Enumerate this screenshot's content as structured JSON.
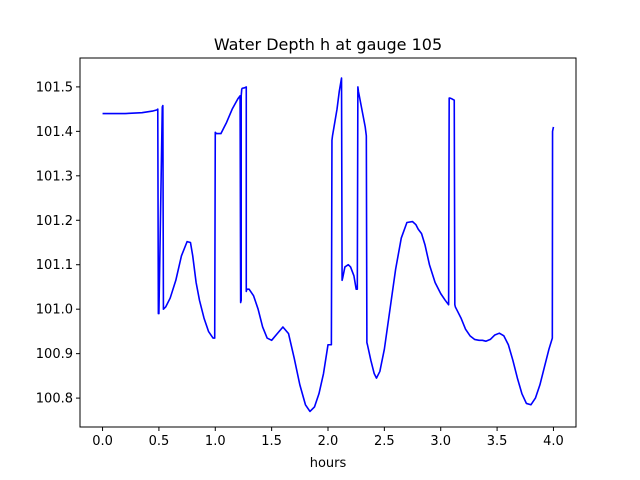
{
  "chart_data": {
    "type": "line",
    "title": "Water Depth h at gauge 105",
    "xlabel": "hours",
    "ylabel": "",
    "xlim": [
      -0.2,
      4.2
    ],
    "ylim": [
      100.735,
      101.565
    ],
    "xticks": [
      0.0,
      0.5,
      1.0,
      1.5,
      2.0,
      2.5,
      3.0,
      3.5,
      4.0
    ],
    "xtick_labels": [
      "0.0",
      "0.5",
      "1.0",
      "1.5",
      "2.0",
      "2.5",
      "3.0",
      "3.5",
      "4.0"
    ],
    "yticks": [
      100.8,
      100.9,
      101.0,
      101.1,
      101.2,
      101.3,
      101.4,
      101.5
    ],
    "ytick_labels": [
      "100.8",
      "100.9",
      "101.0",
      "101.1",
      "101.2",
      "101.3",
      "101.4",
      "101.5"
    ],
    "grid": false,
    "line_color": "#0000ff",
    "series": [
      {
        "x": [
          0.0,
          0.2,
          0.35,
          0.45,
          0.48,
          0.485,
          0.49,
          0.495,
          0.5,
          0.53,
          0.535,
          0.54,
          0.56,
          0.6,
          0.65,
          0.7,
          0.75,
          0.78,
          0.8,
          0.83,
          0.86,
          0.9,
          0.94,
          0.98,
          0.995,
          1.0,
          1.01,
          1.05,
          1.1,
          1.15,
          1.2,
          1.22,
          1.225,
          1.23,
          1.23,
          1.235,
          1.24,
          1.26,
          1.275,
          1.275,
          1.28,
          1.3,
          1.34,
          1.38,
          1.42,
          1.46,
          1.5,
          1.55,
          1.6,
          1.65,
          1.7,
          1.75,
          1.8,
          1.84,
          1.88,
          1.92,
          1.96,
          2.0,
          2.03,
          2.035,
          2.04,
          2.08,
          2.1,
          2.12,
          2.125,
          2.13,
          2.15,
          2.18,
          2.2,
          2.23,
          2.25,
          2.26,
          2.265,
          2.27,
          2.3,
          2.33,
          2.34,
          2.345,
          2.35,
          2.38,
          2.41,
          2.43,
          2.46,
          2.5,
          2.55,
          2.6,
          2.65,
          2.7,
          2.75,
          2.78,
          2.8,
          2.83,
          2.86,
          2.9,
          2.95,
          3.0,
          3.04,
          3.07,
          3.075,
          3.08,
          3.1,
          3.12,
          3.125,
          3.13,
          3.14,
          3.18,
          3.22,
          3.26,
          3.3,
          3.34,
          3.37,
          3.4,
          3.44,
          3.48,
          3.52,
          3.56,
          3.6,
          3.64,
          3.68,
          3.72,
          3.76,
          3.8,
          3.84,
          3.88,
          3.92,
          3.96,
          3.99,
          3.992,
          4.0
        ],
        "y": [
          101.44,
          101.44,
          101.442,
          101.446,
          101.448,
          101.449,
          101.45,
          100.99,
          100.99,
          101.455,
          101.458,
          101.0,
          101.005,
          101.025,
          101.065,
          101.12,
          101.152,
          101.15,
          101.12,
          101.06,
          101.02,
          100.98,
          100.95,
          100.935,
          100.935,
          101.398,
          101.395,
          101.395,
          101.42,
          101.45,
          101.473,
          101.48,
          101.015,
          101.02,
          101.48,
          101.495,
          101.497,
          101.498,
          101.5,
          101.04,
          101.045,
          101.045,
          101.03,
          101.0,
          100.96,
          100.935,
          100.93,
          100.945,
          100.96,
          100.945,
          100.89,
          100.83,
          100.785,
          100.77,
          100.78,
          100.81,
          100.855,
          100.92,
          100.92,
          101.38,
          101.39,
          101.45,
          101.49,
          101.52,
          101.065,
          101.07,
          101.095,
          101.1,
          101.095,
          101.075,
          101.045,
          101.045,
          101.5,
          101.49,
          101.45,
          101.41,
          101.39,
          100.925,
          100.92,
          100.885,
          100.855,
          100.845,
          100.86,
          100.91,
          101.0,
          101.09,
          101.16,
          101.195,
          101.197,
          101.19,
          101.18,
          101.17,
          101.145,
          101.1,
          101.06,
          101.035,
          101.02,
          101.01,
          101.475,
          101.475,
          101.473,
          101.47,
          101.01,
          101.005,
          101.0,
          100.98,
          100.955,
          100.94,
          100.932,
          100.93,
          100.93,
          100.928,
          100.932,
          100.942,
          100.946,
          100.94,
          100.92,
          100.885,
          100.845,
          100.81,
          100.788,
          100.785,
          100.8,
          100.83,
          100.87,
          100.91,
          100.935,
          101.4,
          101.41
        ]
      }
    ]
  }
}
